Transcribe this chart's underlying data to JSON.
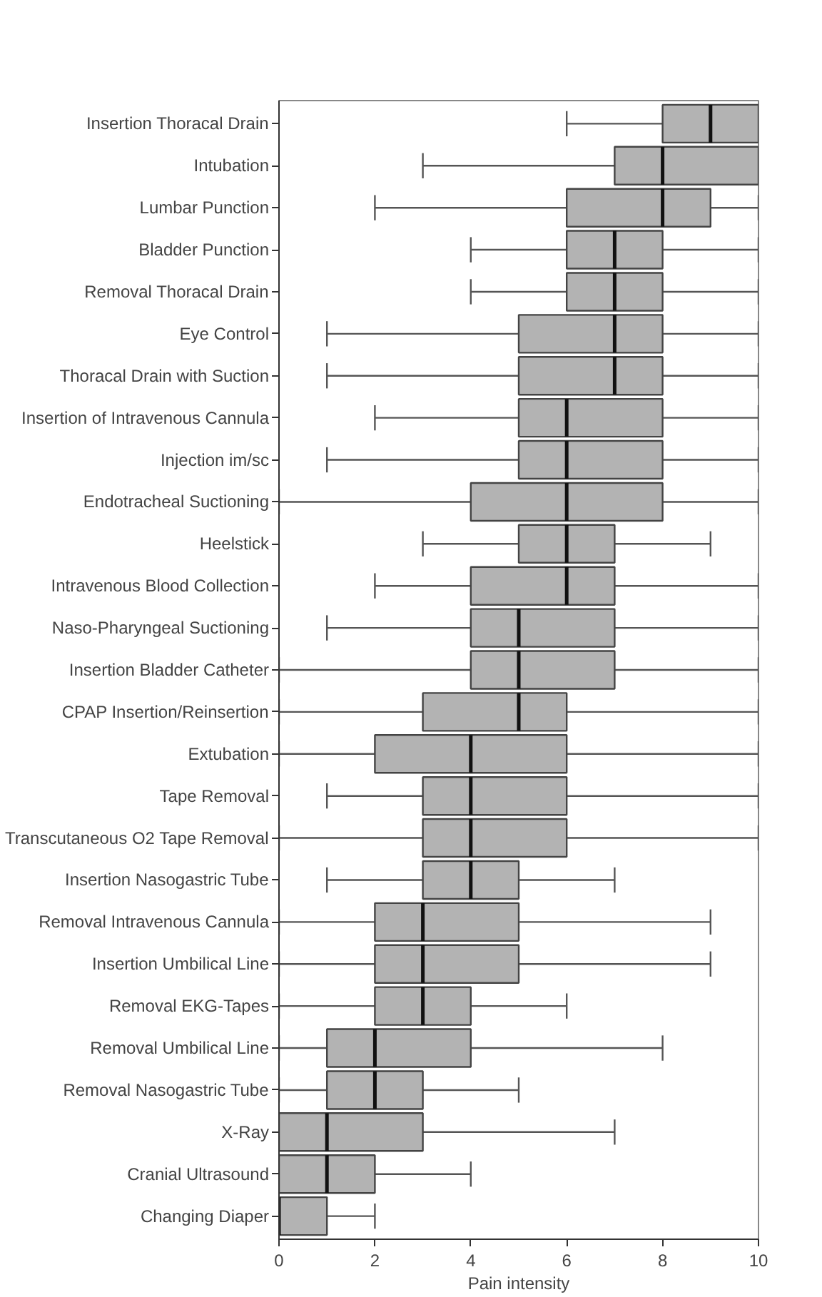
{
  "chart_data": {
    "type": "box",
    "orientation": "horizontal",
    "xlabel": "Pain intensity",
    "xlim": [
      0,
      10
    ],
    "xticks": [
      0,
      2,
      4,
      6,
      8,
      10
    ],
    "grid": false,
    "color": "#b3b3b3",
    "categories": [
      "Insertion Thoracal Drain",
      "Intubation",
      "Lumbar Punction",
      "Bladder Punction",
      "Removal Thoracal Drain",
      "Eye Control",
      "Thoracal Drain with Suction",
      "Insertion of Intravenous Cannula",
      "Injection im/sc",
      "Endotracheal Suctioning",
      "Heelstick",
      "Intravenous Blood Collection",
      "Naso-Pharyngeal Suctioning",
      "Insertion Bladder Catheter",
      "CPAP Insertion/Reinsertion",
      "Extubation",
      "Tape Removal",
      "Transcutaneous O2 Tape Removal",
      "Insertion Nasogastric Tube",
      "Removal Intravenous Cannula",
      "Insertion Umbilical Line",
      "Removal EKG-Tapes",
      "Removal Umbilical Line",
      "Removal Nasogastric Tube",
      "X-Ray",
      "Cranial Ultrasound",
      "Changing Diaper"
    ],
    "boxes": [
      {
        "low": 6,
        "q1": 8,
        "median": 9,
        "q3": 10,
        "high": 10
      },
      {
        "low": 3,
        "q1": 7,
        "median": 8,
        "q3": 10,
        "high": 10
      },
      {
        "low": 2,
        "q1": 6,
        "median": 8,
        "q3": 9,
        "high": 10
      },
      {
        "low": 4,
        "q1": 6,
        "median": 7,
        "q3": 8,
        "high": 10
      },
      {
        "low": 4,
        "q1": 6,
        "median": 7,
        "q3": 8,
        "high": 10
      },
      {
        "low": 1,
        "q1": 5,
        "median": 7,
        "q3": 8,
        "high": 10
      },
      {
        "low": 1,
        "q1": 5,
        "median": 7,
        "q3": 8,
        "high": 10
      },
      {
        "low": 2,
        "q1": 5,
        "median": 6,
        "q3": 8,
        "high": 10
      },
      {
        "low": 1,
        "q1": 5,
        "median": 6,
        "q3": 8,
        "high": 10
      },
      {
        "low": 0,
        "q1": 4,
        "median": 6,
        "q3": 8,
        "high": 10
      },
      {
        "low": 3,
        "q1": 5,
        "median": 6,
        "q3": 7,
        "high": 9
      },
      {
        "low": 2,
        "q1": 4,
        "median": 6,
        "q3": 7,
        "high": 10
      },
      {
        "low": 1,
        "q1": 4,
        "median": 5,
        "q3": 7,
        "high": 10
      },
      {
        "low": 0,
        "q1": 4,
        "median": 5,
        "q3": 7,
        "high": 10
      },
      {
        "low": 0,
        "q1": 3,
        "median": 5,
        "q3": 6,
        "high": 10
      },
      {
        "low": 0,
        "q1": 2,
        "median": 4,
        "q3": 6,
        "high": 10
      },
      {
        "low": 1,
        "q1": 3,
        "median": 4,
        "q3": 6,
        "high": 10
      },
      {
        "low": 0,
        "q1": 3,
        "median": 4,
        "q3": 6,
        "high": 10
      },
      {
        "low": 1,
        "q1": 3,
        "median": 4,
        "q3": 5,
        "high": 7
      },
      {
        "low": 0,
        "q1": 2,
        "median": 3,
        "q3": 5,
        "high": 9
      },
      {
        "low": 0,
        "q1": 2,
        "median": 3,
        "q3": 5,
        "high": 9
      },
      {
        "low": 0,
        "q1": 2,
        "median": 3,
        "q3": 4,
        "high": 6
      },
      {
        "low": 0,
        "q1": 1,
        "median": 2,
        "q3": 4,
        "high": 8
      },
      {
        "low": 0,
        "q1": 1,
        "median": 2,
        "q3": 3,
        "high": 5
      },
      {
        "low": 0,
        "q1": 0,
        "median": 1,
        "q3": 3,
        "high": 7
      },
      {
        "low": 0,
        "q1": 0,
        "median": 1,
        "q3": 2,
        "high": 4
      },
      {
        "low": 0,
        "q1": 0,
        "median": 0,
        "q3": 1,
        "high": 2
      }
    ]
  }
}
